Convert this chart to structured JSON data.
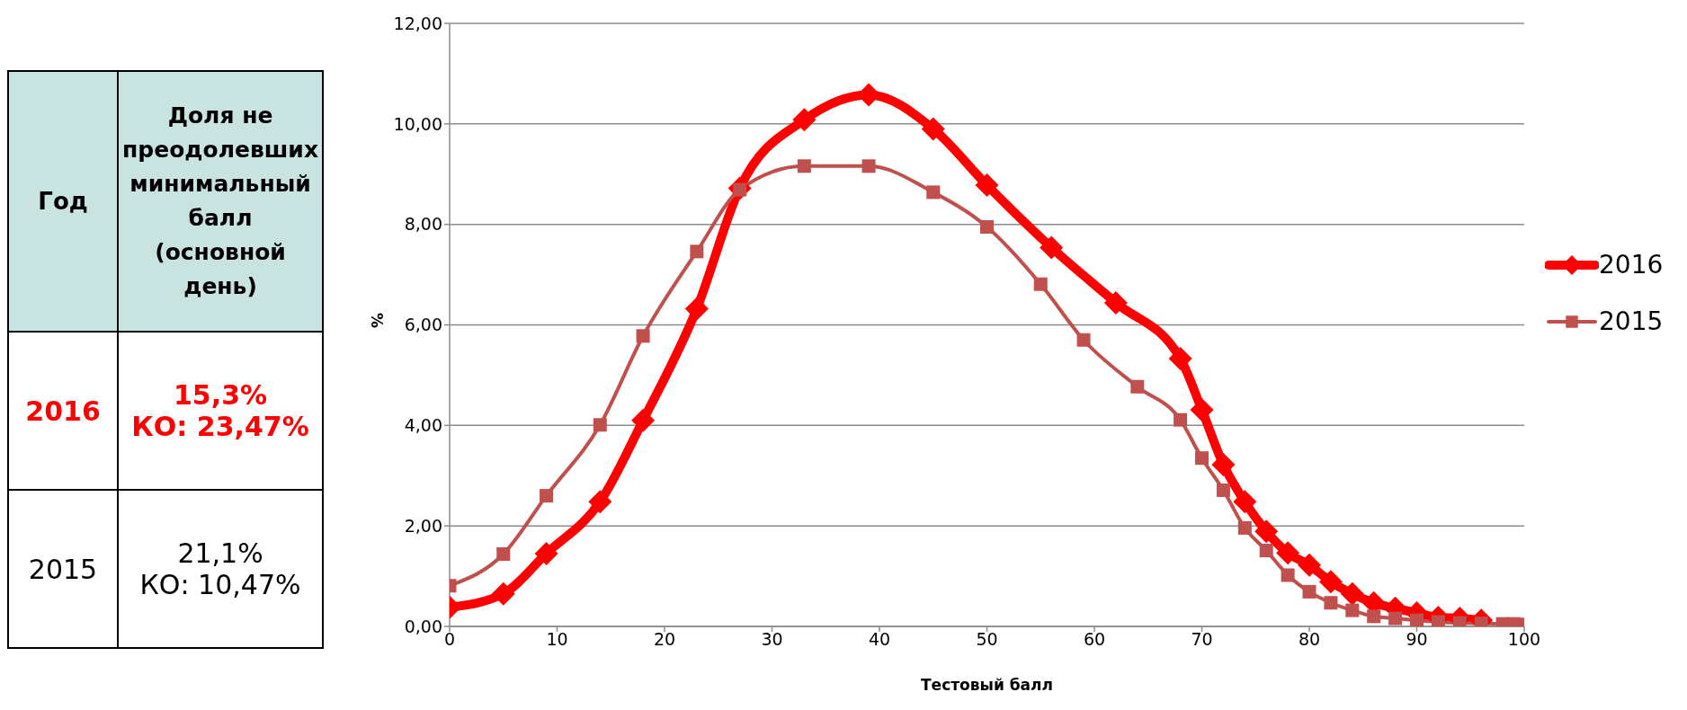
{
  "chart_data": [
    {
      "type": "other",
      "annotations": [
        "Год",
        "Доля не преодолевших минимальный балл (основной день)",
        "2016",
        "15,3%",
        "КО: 23,47%",
        "2015",
        "21,1%",
        "КО: 10,47%"
      ],
      "colors": [
        "#000000",
        "#000000",
        "#ff0000",
        "#ff0000",
        "#ff0000",
        "#000000",
        "#000000",
        "#000000"
      ]
    },
    {
      "type": "line",
      "xlabel": "Тестовый балл",
      "ylabel": "%",
      "xlim": [
        0,
        100
      ],
      "xticks": [
        0,
        10,
        20,
        30,
        40,
        50,
        60,
        70,
        80,
        90,
        100
      ],
      "ylim": [
        0,
        12
      ],
      "yticks": [
        {
          "value": 0,
          "label": "0,00"
        },
        {
          "value": 2,
          "label": "2,00"
        },
        {
          "value": 4,
          "label": "4,00"
        },
        {
          "value": 6,
          "label": "6,00"
        },
        {
          "value": 8,
          "label": "8,00"
        },
        {
          "value": 10,
          "label": "10,00"
        },
        {
          "value": 12,
          "label": "12,00"
        }
      ],
      "grid": "y",
      "legend": "right",
      "series": [
        {
          "name": "2016",
          "color": "#ff0000",
          "marker": "diamond",
          "x": [
            0,
            5,
            9,
            14,
            18,
            23,
            27,
            33,
            39,
            45,
            50,
            56,
            62,
            68,
            70,
            72,
            74,
            76,
            78,
            80,
            82,
            84,
            86,
            88,
            90,
            92,
            94,
            96
          ],
          "values": [
            0.38,
            0.65,
            1.45,
            2.48,
            4.1,
            6.32,
            8.72,
            10.08,
            10.58,
            9.9,
            8.78,
            7.54,
            6.44,
            5.33,
            4.31,
            3.22,
            2.48,
            1.89,
            1.46,
            1.22,
            0.89,
            0.65,
            0.47,
            0.36,
            0.27,
            0.18,
            0.16,
            0.12
          ]
        },
        {
          "name": "2015",
          "color": "#c0504d",
          "marker": "square",
          "x": [
            0,
            5,
            9,
            14,
            18,
            23,
            27,
            33,
            39,
            45,
            50,
            55,
            59,
            64,
            68,
            70,
            72,
            74,
            76,
            78,
            80,
            82,
            84,
            86,
            88,
            90,
            92,
            94,
            96,
            98,
            99,
            100
          ],
          "values": [
            0.81,
            1.44,
            2.6,
            4.01,
            5.78,
            7.46,
            8.69,
            9.16,
            9.16,
            8.64,
            7.95,
            6.81,
            5.7,
            4.77,
            4.11,
            3.35,
            2.71,
            1.96,
            1.51,
            1.02,
            0.69,
            0.47,
            0.32,
            0.2,
            0.16,
            0.12,
            0.09,
            0.07,
            0.06,
            0.05,
            0.05,
            0.04
          ]
        }
      ]
    }
  ]
}
